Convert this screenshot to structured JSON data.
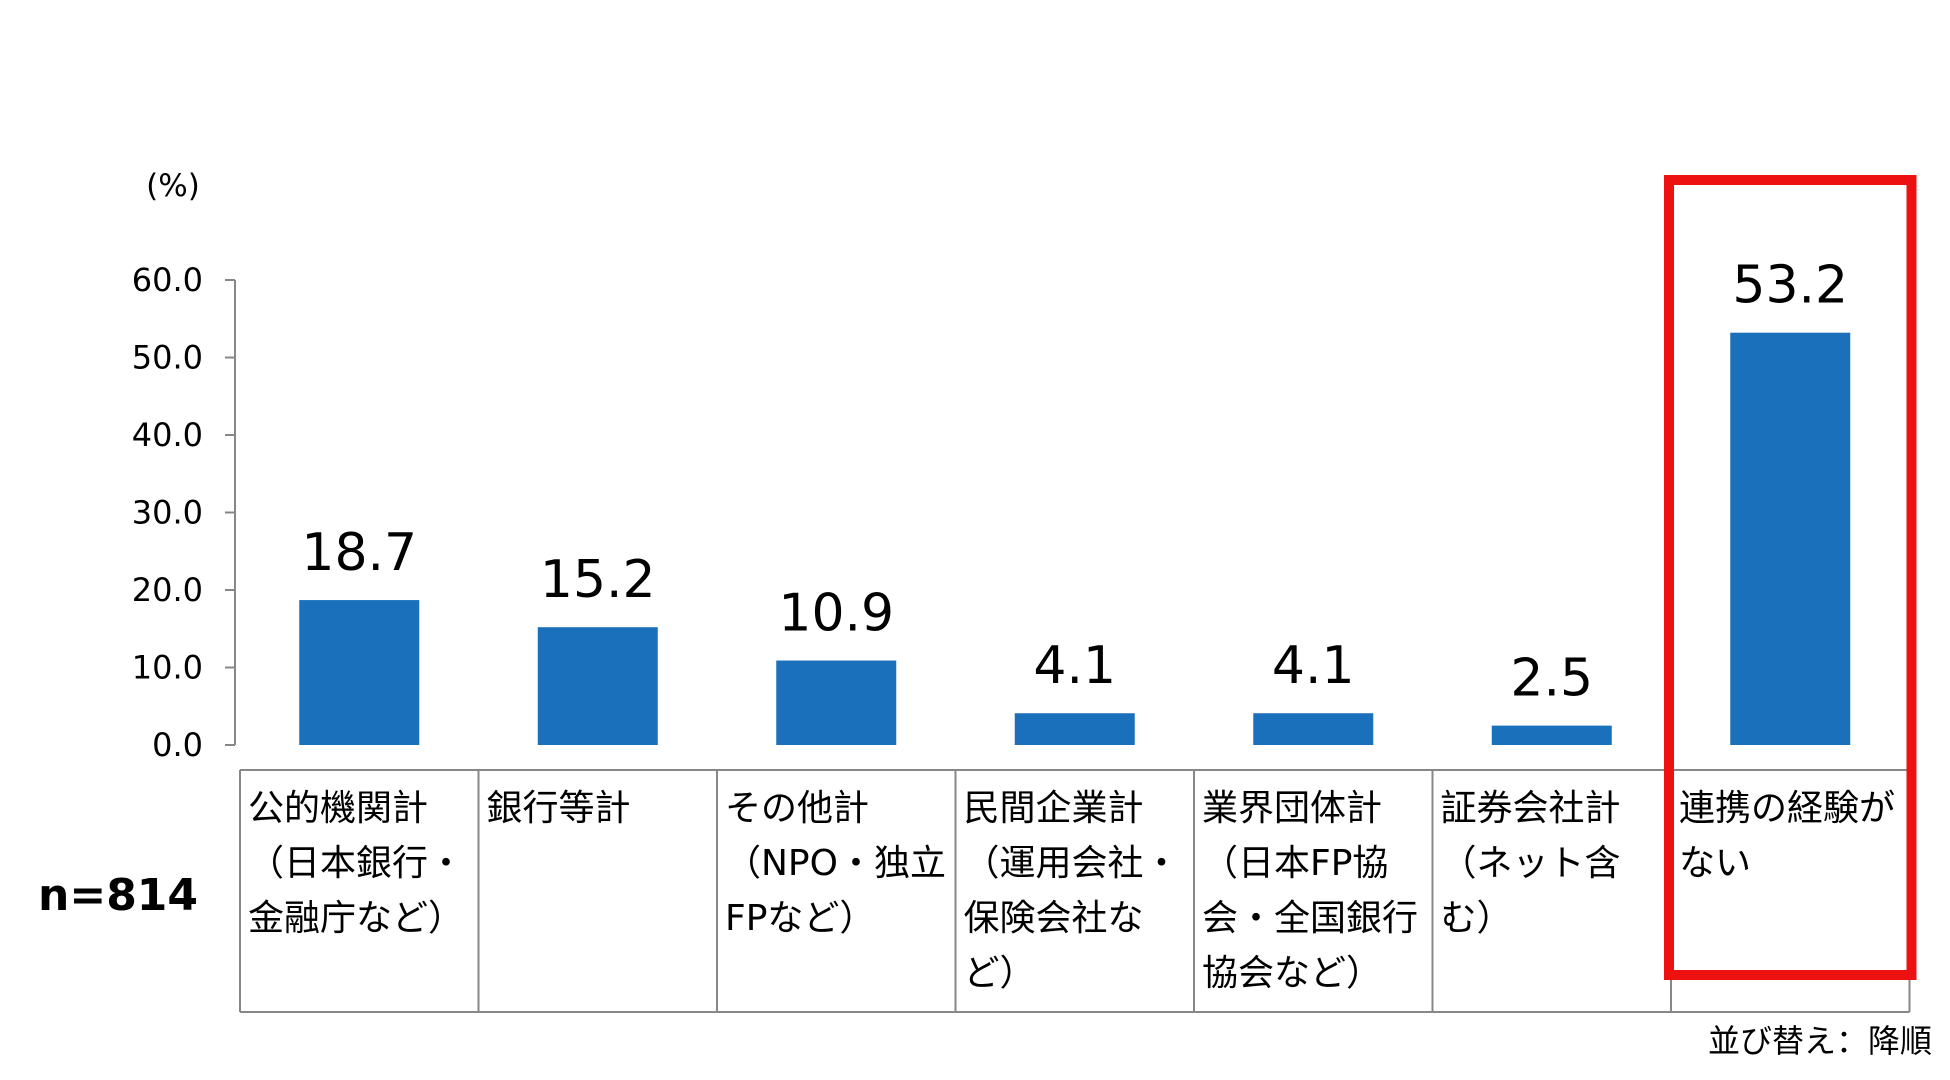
{
  "chart_data": {
    "type": "bar",
    "unit_label": "(%)",
    "categories": [
      [
        "公的機関計",
        "（日本銀行・",
        "金融庁など）"
      ],
      [
        "銀行等計"
      ],
      [
        "その他計",
        "（NPO・独立",
        "FPなど）"
      ],
      [
        "民間企業計",
        "（運用会社・",
        "保険会社な",
        "ど）"
      ],
      [
        "業界団体計",
        "（日本FP協",
        "会・全国銀行",
        "協会など）"
      ],
      [
        "証券会社計",
        "（ネット含",
        "む）"
      ],
      [
        "連携の経験が",
        "ない"
      ]
    ],
    "values": [
      18.7,
      15.2,
      10.9,
      4.1,
      4.1,
      2.5,
      53.2
    ],
    "value_labels": [
      "18.7",
      "15.2",
      "10.9",
      "4.1",
      "4.1",
      "2.5",
      "53.2"
    ],
    "ylim": [
      0,
      60
    ],
    "yticks": [
      "0.0",
      "10.0",
      "20.0",
      "30.0",
      "40.0",
      "50.0",
      "60.0"
    ],
    "highlight_index": 6,
    "sample_size": "n=814",
    "sort_note": "並び替え：降順",
    "colors": {
      "bar": "#1a70ba",
      "highlight": "#ee1111",
      "axis": "#878787"
    }
  }
}
